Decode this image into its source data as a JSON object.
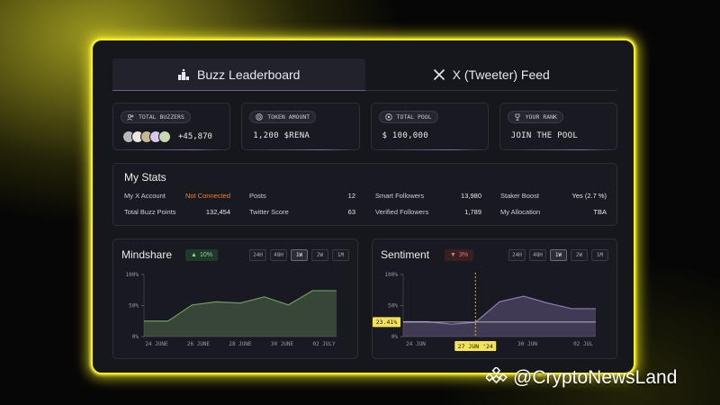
{
  "tabs": [
    {
      "label": "Buzz Leaderboard",
      "icon": "podium-icon",
      "active": true
    },
    {
      "label": "X (Tweeter) Feed",
      "icon": "x-logo-icon",
      "active": false
    }
  ],
  "cards": {
    "total_buzzers": {
      "label": "TOTAL BUZZERS",
      "value": "+45,870"
    },
    "token_amount": {
      "label": "TOKEN AMOUNT",
      "value": "1,200 $RENA"
    },
    "total_pool": {
      "label": "TOTAL POOL",
      "value": "$ 100,000"
    },
    "your_rank": {
      "label": "YOUR RANK",
      "value": "JOIN THE POOL"
    }
  },
  "avatar_colors": [
    "#b8b8b8",
    "#e8e6de",
    "#c7b98f",
    "#d9c7ef",
    "#c9d8b0"
  ],
  "my_stats": {
    "title": "My Stats",
    "items": [
      {
        "label": "My X Account",
        "value": "Not Connected",
        "warn": true
      },
      {
        "label": "Total Buzz Points",
        "value": "132,454"
      },
      {
        "label": "Posts",
        "value": "12"
      },
      {
        "label": "Twitter Score",
        "value": "63"
      },
      {
        "label": "Smart Followers",
        "value": "13,980"
      },
      {
        "label": "Verified Followers",
        "value": "1,789"
      },
      {
        "label": "Staker Boost",
        "value": "Yes (2.7 %)"
      },
      {
        "label": "My Allocation",
        "value": "TBA"
      }
    ]
  },
  "ranges": [
    "24H",
    "48H",
    "1W",
    "2W",
    "1M"
  ],
  "selected_range": "1W",
  "chart_data": [
    {
      "type": "area",
      "title": "Mindshare",
      "badge": "10%",
      "badge_direction": "up",
      "y_ticks": [
        "100%",
        "50%",
        "0%"
      ],
      "ylim": [
        0,
        100
      ],
      "x_ticks": [
        "24 JUNE",
        "26 JUNE",
        "28 JUNE",
        "30 JUNE",
        "02 JULY"
      ],
      "x": [
        0,
        1,
        2,
        3,
        4,
        5,
        6,
        7,
        8
      ],
      "series": [
        {
          "values": [
            25,
            25,
            51,
            56,
            54,
            64,
            51,
            74,
            74
          ],
          "color": "#6f9a62"
        }
      ]
    },
    {
      "type": "area",
      "title": "Sentiment",
      "badge": "3%",
      "badge_direction": "down",
      "y_ticks": [
        "100%",
        "50%",
        "0%"
      ],
      "ylim": [
        0,
        100
      ],
      "x_ticks": [
        "24 JUN",
        "27 JUN",
        "30 JUN",
        "02 JUL"
      ],
      "crosshair": {
        "x_label": "27 JUN '24",
        "y_label": "23.41%",
        "y": 23.41
      },
      "x": [
        0,
        1,
        2,
        3,
        4,
        5,
        6,
        7,
        8
      ],
      "series": [
        {
          "values": [
            24,
            24,
            20,
            23,
            56,
            65,
            54,
            45,
            45
          ],
          "color": "#8c78b4"
        }
      ]
    }
  ],
  "watermark": "@CryptoNewsLand"
}
